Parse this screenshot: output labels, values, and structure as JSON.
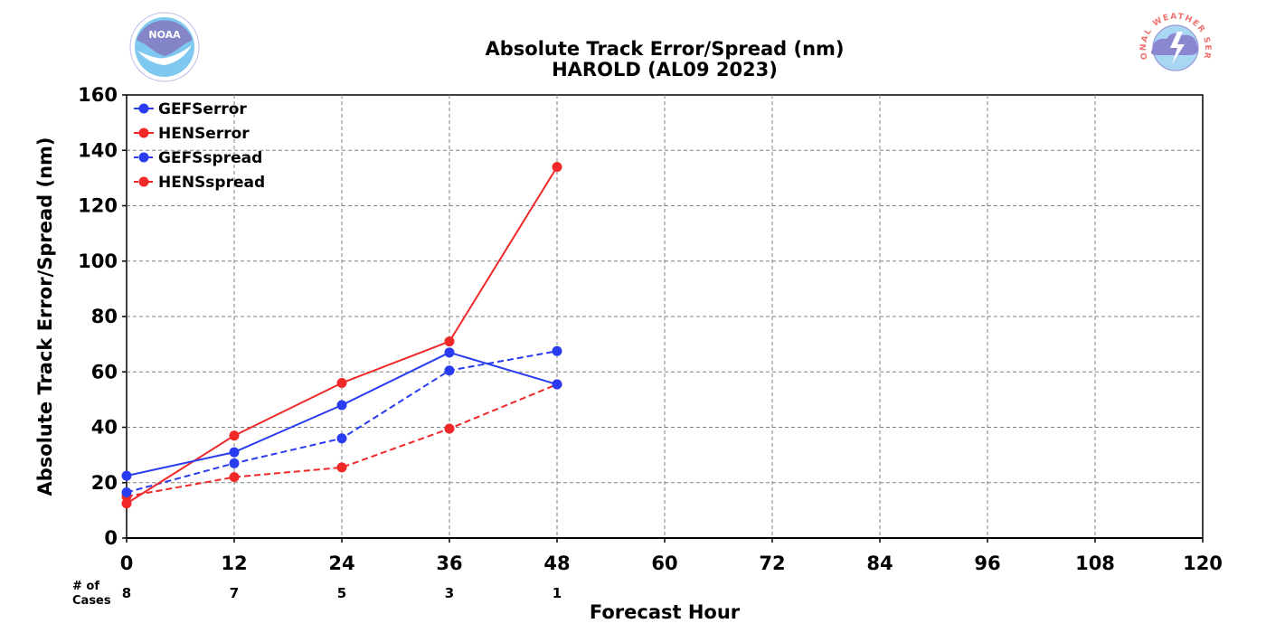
{
  "logos": {
    "left": {
      "text": "NOAA",
      "icon": "noaa-logo"
    },
    "right": {
      "text": "NATIONAL WEATHER SERVICE",
      "icon": "nws-logo"
    }
  },
  "chart_data": {
    "type": "line",
    "title": "Absolute Track Error/Spread (nm)",
    "subtitle": "HAROLD (AL09 2023)",
    "xlabel": "Forecast Hour",
    "ylabel": "Absolute Track Error/Spread (nm)",
    "xlim": [
      0,
      120
    ],
    "ylim": [
      0,
      160
    ],
    "xticks": [
      0,
      12,
      24,
      36,
      48,
      60,
      72,
      84,
      96,
      108,
      120
    ],
    "yticks": [
      0,
      20,
      40,
      60,
      80,
      100,
      120,
      140,
      160
    ],
    "grid": true,
    "legend_position": "top-left",
    "cases_label": "# of Cases",
    "cases": [
      {
        "x": 0,
        "n": "8"
      },
      {
        "x": 12,
        "n": "7"
      },
      {
        "x": 24,
        "n": "5"
      },
      {
        "x": 36,
        "n": "3"
      },
      {
        "x": 48,
        "n": "1"
      }
    ],
    "series": [
      {
        "name": "GEFSerror",
        "color": "#2a3cf0",
        "dashed": false,
        "x": [
          0,
          12,
          24,
          36,
          48
        ],
        "values": [
          22.5,
          31,
          48,
          67,
          55.5
        ]
      },
      {
        "name": "HENSerror",
        "color": "#f02828",
        "dashed": false,
        "x": [
          0,
          12,
          24,
          36,
          48
        ],
        "values": [
          12.5,
          37,
          56,
          71,
          134
        ]
      },
      {
        "name": "GEFSspread",
        "color": "#2a3cf0",
        "dashed": true,
        "x": [
          0,
          12,
          24,
          36,
          48
        ],
        "values": [
          16.5,
          27,
          36,
          60.5,
          67.5
        ]
      },
      {
        "name": "HENSspread",
        "color": "#f02828",
        "dashed": true,
        "x": [
          0,
          12,
          24,
          36,
          48
        ],
        "values": [
          15,
          22,
          25.5,
          39.5,
          55.5
        ]
      }
    ]
  }
}
